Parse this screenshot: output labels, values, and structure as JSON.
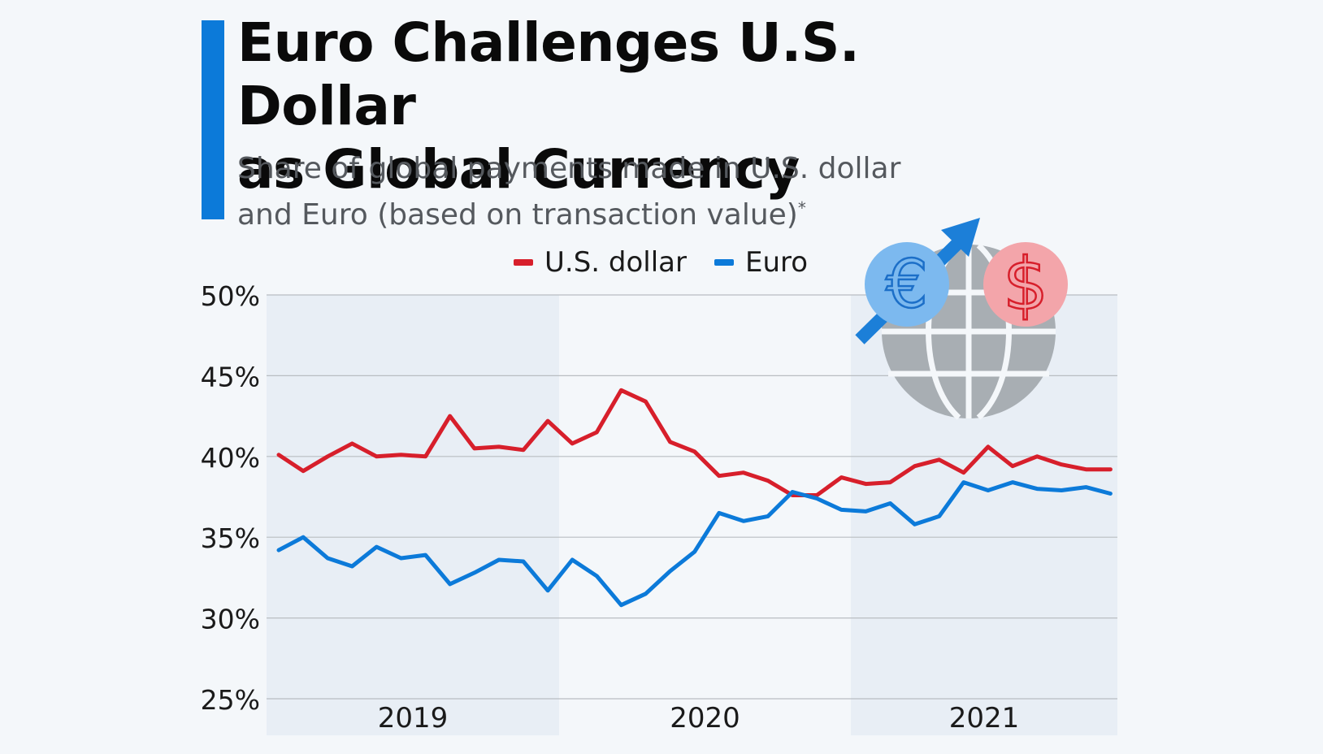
{
  "header": {
    "title_line1": "Euro Challenges U.S. Dollar",
    "title_line2": "as Global Currency",
    "subtitle_line1": "Share of global payments made in U.S. dollar",
    "subtitle_line2": "and Euro (based on transaction value)",
    "subtitle_marker": "*",
    "accent_color": "#0c7ad9"
  },
  "legend": {
    "items": [
      {
        "label": "U.S. dollar",
        "color": "#d71f2b"
      },
      {
        "label": "Euro",
        "color": "#0c7ad9"
      }
    ],
    "placement": "top-center"
  },
  "illustration": {
    "icons": [
      "globe-icon",
      "euro-coin-icon",
      "dollar-coin-icon",
      "up-arrow-icon"
    ],
    "euro_symbol": "€",
    "dollar_symbol": "$"
  },
  "chart_data": {
    "type": "line",
    "y_ticks": [
      "50%",
      "45%",
      "40%",
      "35%",
      "30%",
      "25%"
    ],
    "ylim": [
      25,
      50
    ],
    "year_bands": [
      {
        "label": "2019",
        "shaded": true
      },
      {
        "label": "2020",
        "shaded": false
      },
      {
        "label": "2021",
        "shaded": true
      }
    ],
    "months_per_year": 12,
    "grid": true,
    "series": [
      {
        "name": "U.S. dollar",
        "color": "#d71f2b",
        "values": [
          40.1,
          39.1,
          40.0,
          40.8,
          40.0,
          40.1,
          40.0,
          42.5,
          40.5,
          40.6,
          40.4,
          42.2,
          40.8,
          41.5,
          44.1,
          43.4,
          40.9,
          40.3,
          38.8,
          39.0,
          38.5,
          37.6,
          37.6,
          38.7,
          38.3,
          38.4,
          39.4,
          39.8,
          39.0,
          40.6,
          39.4,
          40.0,
          39.5,
          39.2,
          39.2
        ]
      },
      {
        "name": "Euro",
        "color": "#0c7ad9",
        "values": [
          34.2,
          35.0,
          33.7,
          33.2,
          34.4,
          33.7,
          33.9,
          32.1,
          32.8,
          33.6,
          33.5,
          31.7,
          33.6,
          32.6,
          30.8,
          31.5,
          32.9,
          34.1,
          36.5,
          36.0,
          36.3,
          37.8,
          37.4,
          36.7,
          36.6,
          37.1,
          35.8,
          36.3,
          38.4,
          37.9,
          38.4,
          38.0,
          37.9,
          38.1,
          37.7
        ]
      }
    ]
  }
}
